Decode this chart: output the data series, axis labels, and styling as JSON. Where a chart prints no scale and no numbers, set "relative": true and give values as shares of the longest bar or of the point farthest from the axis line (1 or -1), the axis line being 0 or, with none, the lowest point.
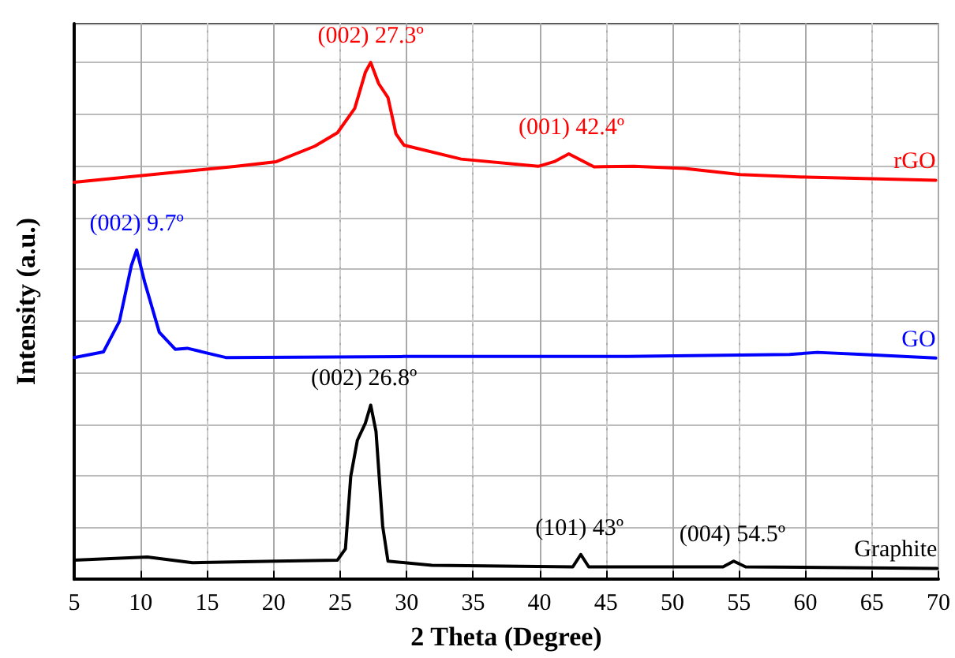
{
  "chart_data": {
    "type": "line",
    "relative": true,
    "xlabel": "2 Theta (Degree)",
    "ylabel": "Intensity (a.u.)",
    "xlim": [
      5,
      70
    ],
    "xticks": [
      5,
      10,
      15,
      20,
      25,
      30,
      35,
      40,
      45,
      50,
      55,
      60,
      65,
      70
    ],
    "grid": true,
    "legend": false,
    "marker": "none",
    "line_style": "solid",
    "series": [
      {
        "name": "rGO",
        "color": "#ff0000",
        "x": [
          5,
          17.2,
          20.2,
          23.1,
          24.8,
          26.1,
          26.9,
          27.3,
          27.9,
          28.6,
          29.2,
          29.8,
          34.1,
          39.9,
          41.1,
          42.2,
          44.1,
          47.1,
          50.9,
          55.1,
          60.1,
          69.8
        ],
        "values": [
          0.768,
          0.799,
          0.808,
          0.838,
          0.864,
          0.911,
          0.981,
          1.0,
          0.959,
          0.932,
          0.862,
          0.84,
          0.813,
          0.799,
          0.808,
          0.823,
          0.798,
          0.799,
          0.795,
          0.783,
          0.778,
          0.772
        ]
      },
      {
        "name": "GO",
        "color": "#0000ff",
        "x": [
          5,
          7.2,
          8.4,
          9.3,
          9.7,
          10.3,
          11.4,
          12.6,
          13.5,
          16.4,
          29.8,
          46.6,
          58.8,
          60.9,
          64.3,
          69.8
        ],
        "values": [
          0.429,
          0.44,
          0.499,
          0.607,
          0.637,
          0.575,
          0.478,
          0.445,
          0.447,
          0.429,
          0.431,
          0.431,
          0.435,
          0.439,
          0.435,
          0.428
        ]
      },
      {
        "name": "Graphite",
        "color": "#000000",
        "x": [
          5,
          10.5,
          13.9,
          20.2,
          24.8,
          25.4,
          25.8,
          26.3,
          26.9,
          27.3,
          27.7,
          28.2,
          28.6,
          31.9,
          42.5,
          43.1,
          43.7,
          53.8,
          54.6,
          55.5,
          69.9
        ],
        "values": [
          0.037,
          0.043,
          0.032,
          0.035,
          0.037,
          0.059,
          0.199,
          0.269,
          0.302,
          0.337,
          0.286,
          0.103,
          0.035,
          0.027,
          0.024,
          0.048,
          0.024,
          0.024,
          0.035,
          0.024,
          0.021
        ]
      }
    ],
    "annotations": [
      {
        "text": "(002) 27.3º",
        "x": 27.3,
        "y": 1.0
      },
      {
        "text": "(001) 42.4º",
        "x": 42.4,
        "y": 0.823
      },
      {
        "text": "(002) 9.7º",
        "x": 9.7,
        "y": 0.637
      },
      {
        "text": "(002) 26.8º",
        "x": 26.8,
        "y": 0.337
      },
      {
        "text": "(101) 43º",
        "x": 43,
        "y": 0.048
      },
      {
        "text": "(004) 54.5º",
        "x": 54.5,
        "y": 0.035
      }
    ]
  }
}
